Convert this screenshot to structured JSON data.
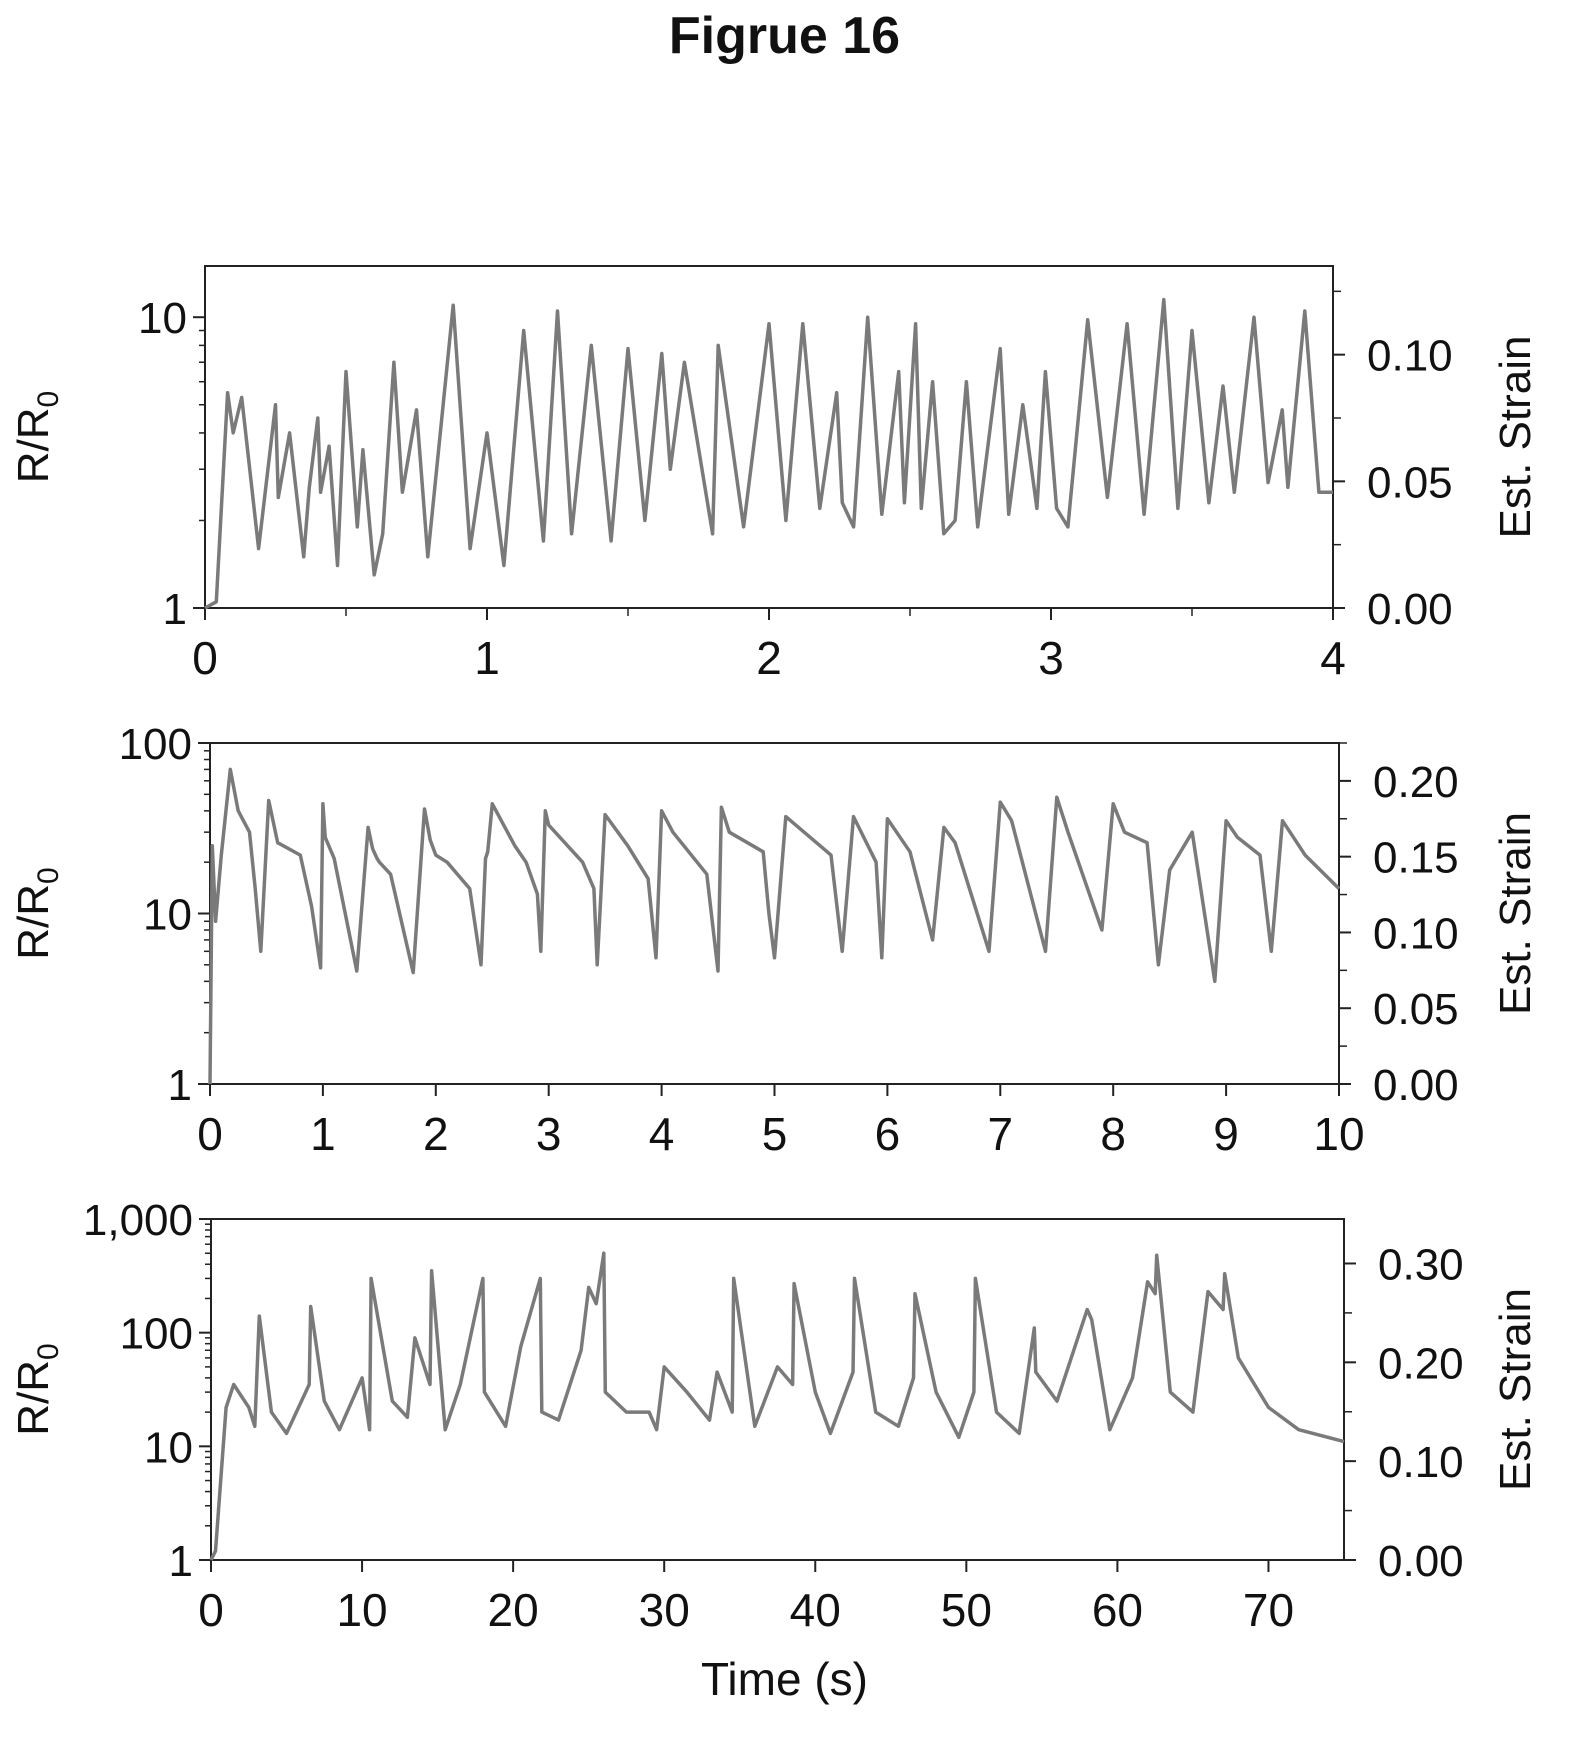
{
  "figure_title": "Figrue 16",
  "x_axis_title": "Time (s)",
  "chart_data": [
    {
      "type": "line",
      "series": [
        {
          "color": "#7a7a7a"
        }
      ],
      "ylabel": "R/R0",
      "y2label": "Est. Strain",
      "y_scale": "log",
      "ylim": [
        1,
        15
      ],
      "yticks": [
        1,
        10
      ],
      "ytick_labels": [
        "1",
        "10"
      ],
      "y2lim": [
        0,
        0.135
      ],
      "y2ticks": [
        0.0,
        0.05,
        0.1
      ],
      "y2tick_labels": [
        "0.00",
        "0.05",
        "0.10"
      ],
      "xlim": [
        0,
        4
      ],
      "xticks": [
        0,
        1,
        2,
        3,
        4
      ],
      "xtick_labels": [
        "0",
        "1",
        "2",
        "3",
        "4"
      ],
      "grid": false,
      "x": [
        0,
        0.04,
        0.08,
        0.1,
        0.13,
        0.19,
        0.25,
        0.26,
        0.3,
        0.35,
        0.37,
        0.4,
        0.41,
        0.44,
        0.47,
        0.5,
        0.54,
        0.56,
        0.6,
        0.63,
        0.67,
        0.7,
        0.75,
        0.79,
        0.88,
        0.94,
        1.0,
        1.06,
        1.13,
        1.2,
        1.25,
        1.3,
        1.37,
        1.44,
        1.5,
        1.56,
        1.62,
        1.65,
        1.7,
        1.8,
        1.82,
        1.91,
        2.0,
        2.06,
        2.12,
        2.18,
        2.24,
        2.26,
        2.3,
        2.35,
        2.4,
        2.46,
        2.48,
        2.52,
        2.54,
        2.58,
        2.62,
        2.66,
        2.7,
        2.74,
        2.82,
        2.85,
        2.9,
        2.95,
        2.98,
        3.02,
        3.06,
        3.13,
        3.2,
        3.27,
        3.33,
        3.4,
        3.45,
        3.5,
        3.56,
        3.61,
        3.65,
        3.72,
        3.77,
        3.82,
        3.84,
        3.9,
        3.95,
        4.0
      ],
      "values": [
        1.0,
        1.05,
        5.5,
        4.0,
        5.3,
        1.6,
        5.0,
        2.4,
        4.0,
        1.5,
        2.6,
        4.5,
        2.5,
        3.6,
        1.4,
        6.5,
        1.9,
        3.5,
        1.3,
        1.8,
        7.0,
        2.5,
        4.8,
        1.5,
        11.0,
        1.6,
        4.0,
        1.4,
        9.0,
        1.7,
        10.5,
        1.8,
        8.0,
        1.7,
        7.8,
        2.0,
        7.5,
        3.0,
        7.0,
        1.8,
        8.0,
        1.9,
        9.5,
        2.0,
        9.5,
        2.2,
        5.5,
        2.3,
        1.9,
        10.0,
        2.1,
        6.5,
        2.3,
        9.5,
        2.2,
        6.0,
        1.8,
        2.0,
        6.0,
        1.9,
        7.8,
        2.1,
        5.0,
        2.2,
        6.5,
        2.2,
        1.9,
        9.8,
        2.4,
        9.5,
        2.1,
        11.5,
        2.2,
        9.0,
        2.3,
        5.8,
        2.5,
        10.0,
        2.7,
        4.8,
        2.6,
        10.5,
        2.5,
        2.5
      ]
    },
    {
      "type": "line",
      "series": [
        {
          "color": "#7a7a7a"
        }
      ],
      "ylabel": "R/R0",
      "y2label": "Est. Strain",
      "y_scale": "log",
      "ylim": [
        1,
        100
      ],
      "yticks": [
        1,
        10,
        100
      ],
      "ytick_labels": [
        "1",
        "10",
        "100"
      ],
      "y2lim": [
        0,
        0.225
      ],
      "y2ticks": [
        0.0,
        0.05,
        0.1,
        0.15,
        0.2
      ],
      "y2tick_labels": [
        "0.00",
        "0.05",
        "0.10",
        "0.15",
        "0.20"
      ],
      "xlim": [
        0,
        10
      ],
      "xticks": [
        0,
        1,
        2,
        3,
        4,
        5,
        6,
        7,
        8,
        9,
        10
      ],
      "xtick_labels": [
        "0",
        "1",
        "2",
        "3",
        "4",
        "5",
        "6",
        "7",
        "8",
        "9",
        "10"
      ],
      "grid": false,
      "x": [
        0,
        0.02,
        0.05,
        0.1,
        0.18,
        0.25,
        0.35,
        0.4,
        0.45,
        0.52,
        0.6,
        0.8,
        0.9,
        0.98,
        1.0,
        1.02,
        1.1,
        1.3,
        1.4,
        1.44,
        1.48,
        1.5,
        1.6,
        1.8,
        1.9,
        1.95,
        2.0,
        2.1,
        2.3,
        2.4,
        2.44,
        2.46,
        2.5,
        2.7,
        2.8,
        2.9,
        2.93,
        2.97,
        3.0,
        3.3,
        3.4,
        3.43,
        3.5,
        3.7,
        3.88,
        3.95,
        4.0,
        4.1,
        4.4,
        4.5,
        4.53,
        4.6,
        4.9,
        4.95,
        5.0,
        5.1,
        5.5,
        5.6,
        5.7,
        5.9,
        5.95,
        6.0,
        6.2,
        6.4,
        6.5,
        6.6,
        6.9,
        7.0,
        7.1,
        7.4,
        7.5,
        7.6,
        7.9,
        8.0,
        8.1,
        8.3,
        8.4,
        8.5,
        8.7,
        8.9,
        9.0,
        9.1,
        9.3,
        9.4,
        9.5,
        9.7,
        10.0
      ],
      "values": [
        1.0,
        25,
        9.0,
        22,
        70,
        40,
        30,
        14,
        6.0,
        46,
        26,
        22,
        11,
        4.8,
        44,
        28,
        21,
        4.6,
        32,
        24,
        21,
        20,
        17,
        4.5,
        41,
        27,
        22,
        20,
        14,
        5.0,
        21,
        23,
        44,
        25,
        20,
        13,
        6.0,
        40,
        33,
        20,
        14,
        5.0,
        38,
        25,
        16,
        5.5,
        40,
        30,
        17,
        4.6,
        42,
        30,
        23,
        10,
        5.5,
        37,
        22,
        6.0,
        37,
        20,
        5.5,
        36,
        23,
        7.0,
        32,
        26,
        6.0,
        45,
        35,
        6.0,
        48,
        30,
        8.0,
        44,
        30,
        26,
        5.0,
        18,
        30,
        4.0,
        35,
        28,
        22,
        6.0,
        35,
        22,
        14
      ]
    },
    {
      "type": "line",
      "series": [
        {
          "color": "#7a7a7a"
        }
      ],
      "ylabel": "R/R0",
      "y2label": "Est. Strain",
      "y_scale": "log",
      "ylim": [
        1,
        1000
      ],
      "yticks": [
        1,
        10,
        100,
        1000
      ],
      "ytick_labels": [
        "1",
        "10",
        "100",
        "1,000"
      ],
      "y2lim": [
        0,
        0.345
      ],
      "y2ticks": [
        0.0,
        0.1,
        0.2,
        0.3
      ],
      "y2tick_labels": [
        "0.00",
        "0.10",
        "0.20",
        "0.30"
      ],
      "xlim": [
        0,
        75
      ],
      "xticks": [
        0,
        10,
        20,
        30,
        40,
        50,
        60,
        70
      ],
      "xtick_labels": [
        "0",
        "10",
        "20",
        "30",
        "40",
        "50",
        "60",
        "70"
      ],
      "grid": false,
      "x": [
        0,
        0.3,
        1.0,
        1.5,
        2.5,
        2.9,
        3.2,
        4.0,
        5.0,
        6.5,
        6.6,
        7.5,
        8.5,
        10.0,
        10.5,
        10.6,
        12.0,
        13.0,
        13.5,
        14.5,
        14.6,
        15.5,
        16.5,
        18.0,
        18.1,
        19.5,
        20.5,
        21.8,
        21.9,
        23.0,
        24.5,
        25.0,
        25.5,
        26.0,
        26.1,
        27.5,
        29.0,
        29.5,
        30.0,
        31.5,
        33.0,
        33.5,
        34.5,
        34.6,
        36.0,
        37.5,
        38.5,
        38.6,
        40.0,
        41.0,
        42.5,
        42.6,
        44.0,
        45.5,
        46.5,
        46.6,
        48.0,
        49.5,
        50.5,
        50.6,
        52.0,
        53.5,
        54.5,
        54.6,
        56.0,
        58.0,
        58.3,
        59.5,
        61.0,
        62.0,
        62.5,
        62.6,
        63.5,
        65.0,
        66.0,
        67.0,
        67.1,
        68.0,
        70.0,
        72.0,
        75.0
      ],
      "values": [
        1.0,
        1.2,
        22,
        35,
        22,
        15,
        140,
        20,
        13,
        35,
        170,
        25,
        14,
        40,
        14,
        300,
        25,
        18,
        90,
        35,
        350,
        14,
        35,
        300,
        30,
        15,
        75,
        300,
        20,
        17,
        70,
        250,
        180,
        500,
        30,
        20,
        20,
        14,
        50,
        30,
        17,
        45,
        20,
        300,
        15,
        50,
        35,
        270,
        30,
        13,
        45,
        300,
        20,
        15,
        40,
        220,
        30,
        12,
        30,
        300,
        20,
        13,
        110,
        45,
        25,
        160,
        130,
        14,
        40,
        280,
        220,
        480,
        30,
        20,
        230,
        160,
        330,
        60,
        22,
        14,
        11
      ]
    }
  ]
}
